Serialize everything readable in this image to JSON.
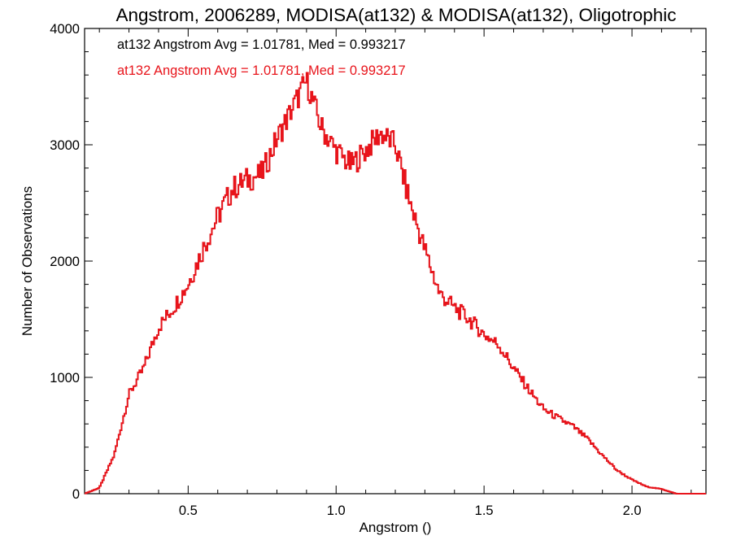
{
  "chart_data": {
    "type": "line",
    "title": "Angstrom, 2006289, MODISA(at132) & MODISA(at132), Oligotrophic",
    "xlabel": "Angstrom ()",
    "ylabel": "Number of Observations",
    "xlim": [
      0.15,
      2.25
    ],
    "ylim": [
      0,
      4000
    ],
    "x_ticks": [
      0.5,
      1.0,
      1.5,
      2.0
    ],
    "x_tick_labels": [
      "0.5",
      "1.0",
      "1.5",
      "2.0"
    ],
    "y_ticks": [
      0,
      1000,
      2000,
      3000,
      4000
    ],
    "y_tick_labels": [
      "0",
      "1000",
      "2000",
      "3000",
      "4000"
    ],
    "grid": false,
    "annotations": [
      {
        "text": "at132 Angstrom Avg = 1.01781, Med = 0.993217",
        "color": "#000000"
      },
      {
        "text": "at132 Angstrom Avg = 1.01781, Med = 0.993217",
        "color": "#e8141b"
      }
    ],
    "series": [
      {
        "color": "#000000",
        "x": [
          0.15,
          0.2,
          0.25,
          0.3,
          0.35,
          0.4,
          0.45,
          0.5,
          0.55,
          0.6,
          0.65,
          0.7,
          0.75,
          0.8,
          0.85,
          0.9,
          0.95,
          1.0,
          1.05,
          1.1,
          1.15,
          1.2,
          1.25,
          1.3,
          1.35,
          1.4,
          1.45,
          1.5,
          1.55,
          1.6,
          1.65,
          1.7,
          1.75,
          1.8,
          1.85,
          1.9,
          1.95,
          2.0,
          2.05,
          2.1,
          2.15,
          2.2,
          2.25
        ],
        "y": [
          0,
          50,
          330,
          850,
          1080,
          1430,
          1600,
          1800,
          2100,
          2380,
          2620,
          2700,
          2750,
          3050,
          3300,
          3550,
          3150,
          2950,
          2820,
          2950,
          3100,
          3000,
          2500,
          2100,
          1720,
          1600,
          1500,
          1370,
          1280,
          1080,
          900,
          730,
          650,
          580,
          470,
          330,
          200,
          120,
          60,
          40,
          0,
          0,
          0
        ]
      },
      {
        "color": "#e8141b",
        "x": [
          0.15,
          0.2,
          0.25,
          0.3,
          0.35,
          0.4,
          0.45,
          0.5,
          0.55,
          0.6,
          0.65,
          0.7,
          0.75,
          0.8,
          0.85,
          0.9,
          0.95,
          1.0,
          1.05,
          1.1,
          1.15,
          1.2,
          1.25,
          1.3,
          1.35,
          1.4,
          1.45,
          1.5,
          1.55,
          1.6,
          1.65,
          1.7,
          1.75,
          1.8,
          1.85,
          1.9,
          1.95,
          2.0,
          2.05,
          2.1,
          2.15,
          2.2,
          2.25
        ],
        "y": [
          0,
          50,
          330,
          850,
          1080,
          1430,
          1600,
          1800,
          2100,
          2380,
          2620,
          2700,
          2750,
          3050,
          3300,
          3550,
          3150,
          2950,
          2820,
          2950,
          3100,
          3000,
          2500,
          2100,
          1720,
          1600,
          1500,
          1370,
          1280,
          1080,
          900,
          730,
          650,
          580,
          470,
          330,
          200,
          120,
          60,
          40,
          0,
          0,
          0
        ]
      }
    ]
  }
}
